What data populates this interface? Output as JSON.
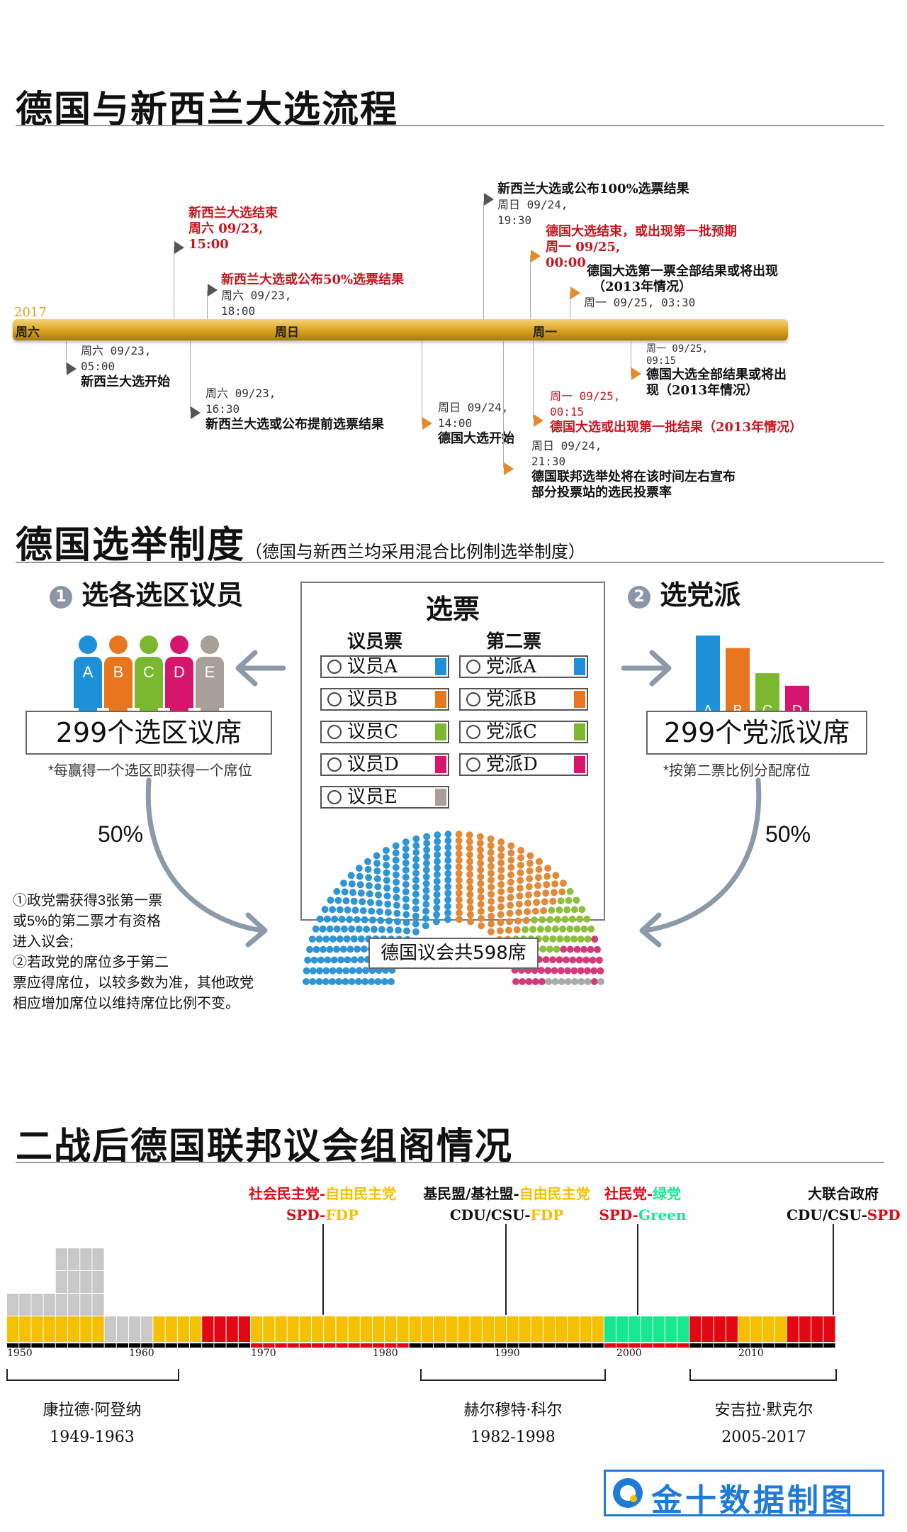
{
  "sections": {
    "timeline_title": "德国与新西兰大选流程",
    "system_title": "德国选举制度",
    "system_subtitle": "（德国与新西兰均采用混合比例制选举制度）",
    "history_title": "二战后德国联邦议会组阁情况"
  },
  "timeline": {
    "year": "2017",
    "day_labels": [
      "周六",
      "周日",
      "周一"
    ],
    "events_above": [
      {
        "title": "新西兰大选结束",
        "date": "周六 09/23,",
        "time": "15:00",
        "red": true
      },
      {
        "title": "新西兰大选或公布50%选票结果",
        "date": "周六 09/23,",
        "time": "18:00",
        "red": true
      },
      {
        "title": "新西兰大选或公布100%选票结果",
        "date": "周日 09/24,",
        "time": "19:30",
        "red": false
      },
      {
        "title": "德国大选结束，或出现第一批预期",
        "date": "周一 09/25,",
        "time": "00:00",
        "red": true
      },
      {
        "title": "德国大选第一票全部结果或将出现",
        "title2": "（2013年情况）",
        "date": "周一 09/25, 03:30",
        "red": false
      }
    ],
    "events_below": [
      {
        "date": "周六 09/23,",
        "time": "05:00",
        "title": "新西兰大选开始"
      },
      {
        "date": "周六 09/23,",
        "time": "16:30",
        "title": "新西兰大选或公布提前选票结果"
      },
      {
        "date": "周日 09/24,",
        "time": "14:00",
        "title": "德国大选开始"
      },
      {
        "date": "周日 09/24,",
        "time": "21:30",
        "title": "德国联邦选举处将在该时间左右宣布",
        "title2": "部分投票站的选民投票率"
      },
      {
        "date": "周一 09/25,",
        "time": "00:15",
        "title": "德国大选或出现第一批结果（2013年情况）",
        "red": true
      },
      {
        "date": "周一 09/25,",
        "time": "09:15",
        "title": "德国大选全部结果或将出",
        "title2": "现（2013年情况）"
      }
    ]
  },
  "system": {
    "step1": {
      "num": "1",
      "label": "选各选区议员"
    },
    "step2": {
      "num": "2",
      "label": "选党派"
    },
    "people": [
      "A",
      "B",
      "C",
      "D",
      "E"
    ],
    "people_colors": [
      "#1e90d8",
      "#e8761e",
      "#7cb82f",
      "#d6166e",
      "#a89f96"
    ],
    "district_seats": "299个选区议席",
    "district_note": "*每赢得一个选区即获得一个席位",
    "party_seats": "299个党派议席",
    "party_note": "*按第二票比例分配席位",
    "bars": [
      "A",
      "B",
      "C",
      "D"
    ],
    "bar_colors": [
      "#1e90d8",
      "#e8761e",
      "#7cb82f",
      "#d6166e"
    ],
    "bar_levels": [
      1.0,
      0.85,
      0.55,
      0.4
    ],
    "pct_left": "50%",
    "pct_right": "50%",
    "ballot": {
      "title": "选票",
      "col1": "议员票",
      "col2": "第二票",
      "candidates": [
        "议员A",
        "议员B",
        "议员C",
        "议员D",
        "议员E"
      ],
      "parties": [
        "党派A",
        "党派B",
        "党派C",
        "党派D"
      ]
    },
    "parliament": "德国议会共598席",
    "parliament_colors": [
      "#2f95d5",
      "#e08a3a",
      "#8fbf3f",
      "#d23c7a",
      "#aaaaaa"
    ],
    "rules": [
      "①政党需获得3张第一票",
      "或5%的第二票才有资格",
      "进入议会;",
      "②若政党的席位多于第二",
      "票应得席位，以较多数为准，其他政党",
      "相应增加席位以维持席位比例不变。"
    ]
  },
  "history": {
    "coalitions": [
      {
        "cn_a": "社会民主党-",
        "cn_b": "自由民主党",
        "en_a": "SPD-",
        "en_b": "FDP"
      },
      {
        "cn_a": "基民盟/基社盟-",
        "cn_b": "自由民主党",
        "en_a": "CDU/CSU-",
        "en_b": "FDP"
      },
      {
        "cn_a": "社民党-",
        "cn_b": "绿党",
        "en_a": "SPD-",
        "en_b": "Green"
      },
      {
        "cn_a": "大联合政府",
        "cn_b": "",
        "en_a": "CDU/CSU-",
        "en_b": "SPD"
      }
    ],
    "years": [
      "1950",
      "1960",
      "1970",
      "1980",
      "1990",
      "2000",
      "2010"
    ],
    "chancellors": [
      {
        "name": "康拉德·阿登纳",
        "term": "1949-1963"
      },
      {
        "name": "赫尔穆特·科尔",
        "term": "1982-1998"
      },
      {
        "name": "安吉拉·默克尔",
        "term": "2005-2017"
      }
    ],
    "party_colors": {
      "CDU": "#000000",
      "SPD": "#e30613",
      "FDP": "#f5c000",
      "Green": "#17e88f",
      "Other": "#c8c8c8"
    }
  },
  "brand": {
    "text": "金十数据制图"
  }
}
